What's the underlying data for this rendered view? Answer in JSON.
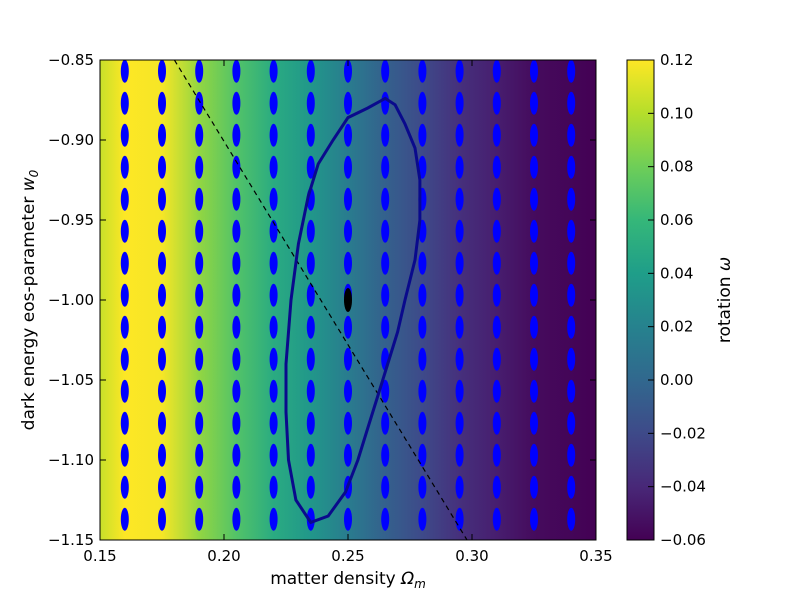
{
  "chart_data": {
    "type": "heatmap",
    "xlabel": "matter density",
    "xlabel_symbol": "Ω",
    "xlabel_sub": "m",
    "ylabel": "dark energy eos-parameter",
    "ylabel_symbol": "w",
    "ylabel_sub": "0",
    "colorbar_label": "rotation",
    "colorbar_symbol": "ω",
    "xlim": [
      0.15,
      0.35
    ],
    "ylim": [
      -1.15,
      -0.85
    ],
    "x_ticks": [
      "0.15",
      "0.20",
      "0.25",
      "0.30",
      "0.35"
    ],
    "y_ticks": [
      "−0.85",
      "−0.90",
      "−0.95",
      "−1.00",
      "−1.05",
      "−1.10",
      "−1.15"
    ],
    "colorbar_ticks": [
      "0.12",
      "0.10",
      "0.08",
      "0.06",
      "0.04",
      "0.02",
      "0.00",
      "−0.02",
      "−0.04",
      "−0.06"
    ],
    "colorbar_range": [
      -0.06,
      0.12
    ],
    "colormap": "viridis",
    "heatmap_rotation_at_x": [
      {
        "x": 0.15,
        "rotation": 0.105
      },
      {
        "x": 0.16,
        "rotation": 0.12
      },
      {
        "x": 0.175,
        "rotation": 0.118
      },
      {
        "x": 0.19,
        "rotation": 0.09
      },
      {
        "x": 0.205,
        "rotation": 0.07
      },
      {
        "x": 0.22,
        "rotation": 0.05
      },
      {
        "x": 0.235,
        "rotation": 0.035
      },
      {
        "x": 0.25,
        "rotation": 0.015
      },
      {
        "x": 0.265,
        "rotation": -0.005
      },
      {
        "x": 0.28,
        "rotation": -0.02
      },
      {
        "x": 0.295,
        "rotation": -0.035
      },
      {
        "x": 0.31,
        "rotation": -0.045
      },
      {
        "x": 0.325,
        "rotation": -0.055
      },
      {
        "x": 0.35,
        "rotation": -0.06
      }
    ],
    "ellipse_grid_x": [
      0.16,
      0.175,
      0.19,
      0.205,
      0.22,
      0.235,
      0.25,
      0.265,
      0.28,
      0.295,
      0.31,
      0.325,
      0.34
    ],
    "ellipse_grid_y": [
      -0.857,
      -0.877,
      -0.897,
      -0.917,
      -0.937,
      -0.957,
      -0.977,
      -0.997,
      -1.017,
      -1.037,
      -1.057,
      -1.077,
      -1.097,
      -1.117,
      -1.137
    ],
    "ellipse_color": "#0000ff",
    "fiducial_point": {
      "x": 0.25,
      "y": -1.0
    },
    "degeneracy_line": [
      [
        0.18,
        -0.85
      ],
      [
        0.298,
        -1.15
      ]
    ],
    "contour": [
      [
        0.265,
        -0.874
      ],
      [
        0.269,
        -0.878
      ],
      [
        0.273,
        -0.89
      ],
      [
        0.277,
        -0.905
      ],
      [
        0.279,
        -0.925
      ],
      [
        0.279,
        -0.95
      ],
      [
        0.277,
        -0.975
      ],
      [
        0.273,
        -1.0
      ],
      [
        0.27,
        -1.02
      ],
      [
        0.266,
        -1.04
      ],
      [
        0.262,
        -1.06
      ],
      [
        0.258,
        -1.08
      ],
      [
        0.254,
        -1.1
      ],
      [
        0.249,
        -1.12
      ],
      [
        0.242,
        -1.135
      ],
      [
        0.235,
        -1.139
      ],
      [
        0.229,
        -1.125
      ],
      [
        0.226,
        -1.1
      ],
      [
        0.225,
        -1.07
      ],
      [
        0.225,
        -1.04
      ],
      [
        0.227,
        -1.0
      ],
      [
        0.23,
        -0.965
      ],
      [
        0.234,
        -0.935
      ],
      [
        0.238,
        -0.915
      ],
      [
        0.244,
        -0.9
      ],
      [
        0.25,
        -0.886
      ],
      [
        0.258,
        -0.88
      ],
      [
        0.265,
        -0.874
      ]
    ],
    "contour_color": "#0a0a8c"
  }
}
